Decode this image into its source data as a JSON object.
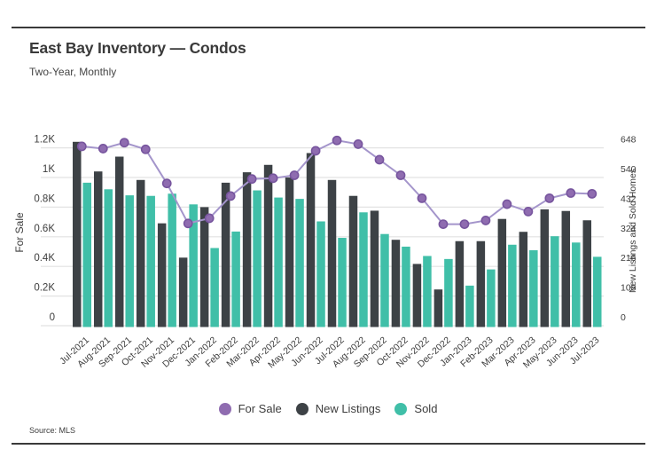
{
  "header": {
    "title": "East Bay Inventory — Condos",
    "subtitle": "Two-Year, Monthly"
  },
  "source": "Source: MLS",
  "legend": [
    {
      "label": "For Sale",
      "color": "#8f6cb0"
    },
    {
      "label": "New Listings",
      "color": "#3d4246"
    },
    {
      "label": "Sold",
      "color": "#40bfa8"
    }
  ],
  "chart_data": {
    "type": "combo-bar-line",
    "title": "East Bay Inventory — Condos",
    "subtitle": "Two-Year, Monthly",
    "grid": true,
    "legend_position": "bottom",
    "categories": [
      "Jul-2021",
      "Aug-2021",
      "Sep-2021",
      "Oct-2021",
      "Nov-2021",
      "Dec-2021",
      "Jan-2022",
      "Feb-2022",
      "Mar-2022",
      "Apr-2022",
      "May-2022",
      "Jun-2022",
      "Jul-2022",
      "Aug-2022",
      "Sep-2022",
      "Oct-2022",
      "Nov-2022",
      "Dec-2022",
      "Jan-2023",
      "Feb-2023",
      "Mar-2023",
      "Apr-2023",
      "May-2023",
      "Jun-2023",
      "Jul-2023"
    ],
    "series": [
      {
        "name": "For Sale",
        "type": "line",
        "axis": "left",
        "line_color": "#a495cb",
        "dot_color": "#8f6cb0",
        "dot_stroke": "#77559e",
        "values": [
          1210,
          1195,
          1235,
          1190,
          960,
          690,
          725,
          875,
          990,
          995,
          1015,
          1180,
          1250,
          1225,
          1120,
          1015,
          860,
          685,
          685,
          710,
          820,
          770,
          860,
          895,
          890
        ]
      },
      {
        "name": "New Listings",
        "type": "bar",
        "axis": "right",
        "color": "#3d4246",
        "values": [
          670,
          562,
          616,
          531,
          373,
          248,
          432,
          521,
          559,
          586,
          540,
          629,
          531,
          473,
          419,
          313,
          225,
          132,
          308,
          308,
          389,
          342,
          424,
          418,
          384
        ]
      },
      {
        "name": "Sold",
        "type": "bar",
        "axis": "right",
        "color": "#40bfa8",
        "values": [
          521,
          497,
          475,
          473,
          481,
          442,
          283,
          343,
          493,
          467,
          462,
          380,
          320,
          413,
          334,
          288,
          254,
          243,
          146,
          205,
          295,
          275,
          326,
          303,
          251
        ]
      }
    ],
    "y_left": {
      "label": "For Sale",
      "ticks": [
        "0",
        "0.2K",
        "0.4K",
        "0.6K",
        "0.8K",
        "1K",
        "1.2K"
      ],
      "tick_values": [
        0,
        200,
        400,
        600,
        800,
        1000,
        1200
      ],
      "max": 1200
    },
    "y_right": {
      "label": "New Listings and Sold Homes",
      "ticks": [
        "0",
        "108",
        "216",
        "324",
        "432",
        "540",
        "648"
      ],
      "tick_values": [
        0,
        108,
        216,
        324,
        432,
        540,
        648
      ],
      "max": 648
    },
    "gridline_color": "#e2e2e2",
    "text_color": "#3d3d3d"
  }
}
